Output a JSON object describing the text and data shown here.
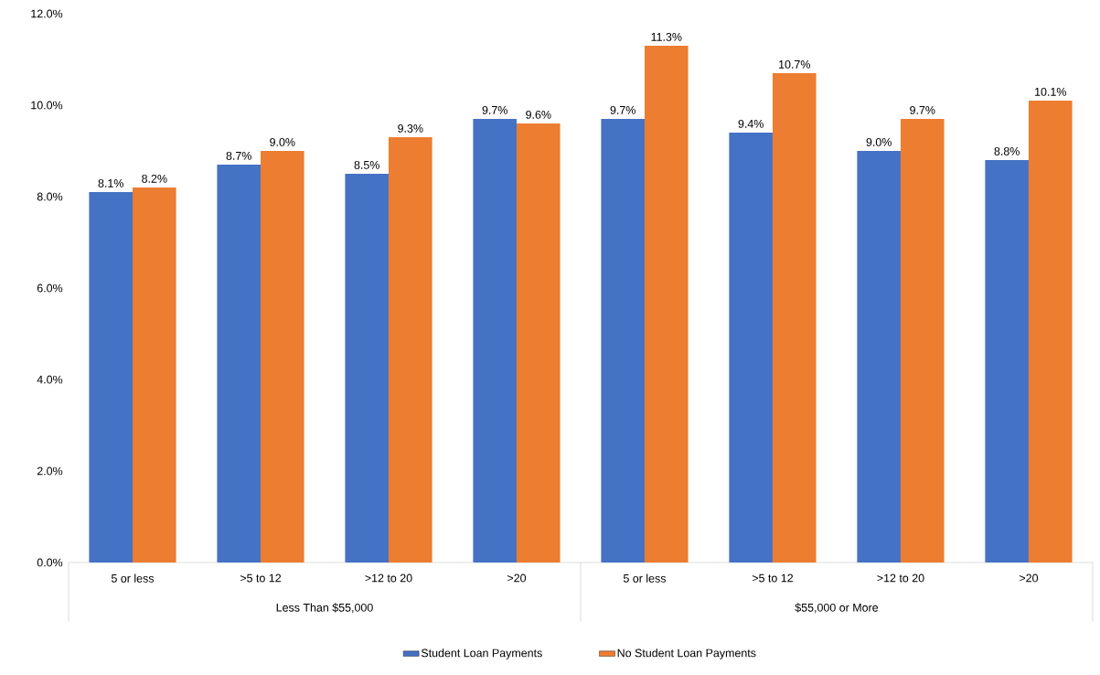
{
  "chart_data": {
    "type": "bar",
    "categories": [
      "5 or less",
      ">5 to 12",
      ">12 to 20",
      ">20",
      "5 or less",
      ">5 to 12",
      ">12 to 20",
      ">20"
    ],
    "annotations": [
      "Less Than $55,000",
      "$55,000 or More"
    ],
    "series": [
      {
        "name": "Student Loan Payments",
        "color": "#4472c4",
        "values": [
          8.1,
          8.7,
          8.5,
          9.7,
          9.7,
          9.4,
          9.0,
          8.8
        ],
        "value_labels": [
          "8.1%",
          "8.7%",
          "8.5%",
          "9.7%",
          "9.7%",
          "9.4%",
          "9.0%",
          "8.8%"
        ]
      },
      {
        "name": "No Student Loan Payments",
        "color": "#ed7d31",
        "values": [
          8.2,
          9.0,
          9.3,
          9.6,
          11.3,
          10.7,
          9.7,
          10.1
        ],
        "value_labels": [
          "8.2%",
          "9.0%",
          "9.3%",
          "9.6%",
          "11.3%",
          "10.7%",
          "9.7%",
          "10.1%"
        ]
      }
    ],
    "ylim": [
      0,
      12
    ],
    "yticks": [
      {
        "value": 0,
        "label": "0.0%"
      },
      {
        "value": 2,
        "label": "2.0%"
      },
      {
        "value": 4,
        "label": "4.0%"
      },
      {
        "value": 6,
        "label": "6.0%"
      },
      {
        "value": 8,
        "label": "8.0%"
      },
      {
        "value": 10,
        "label": "10.0%"
      },
      {
        "value": 12,
        "label": "12.0%"
      }
    ],
    "grid": false,
    "legend": "bottom"
  }
}
